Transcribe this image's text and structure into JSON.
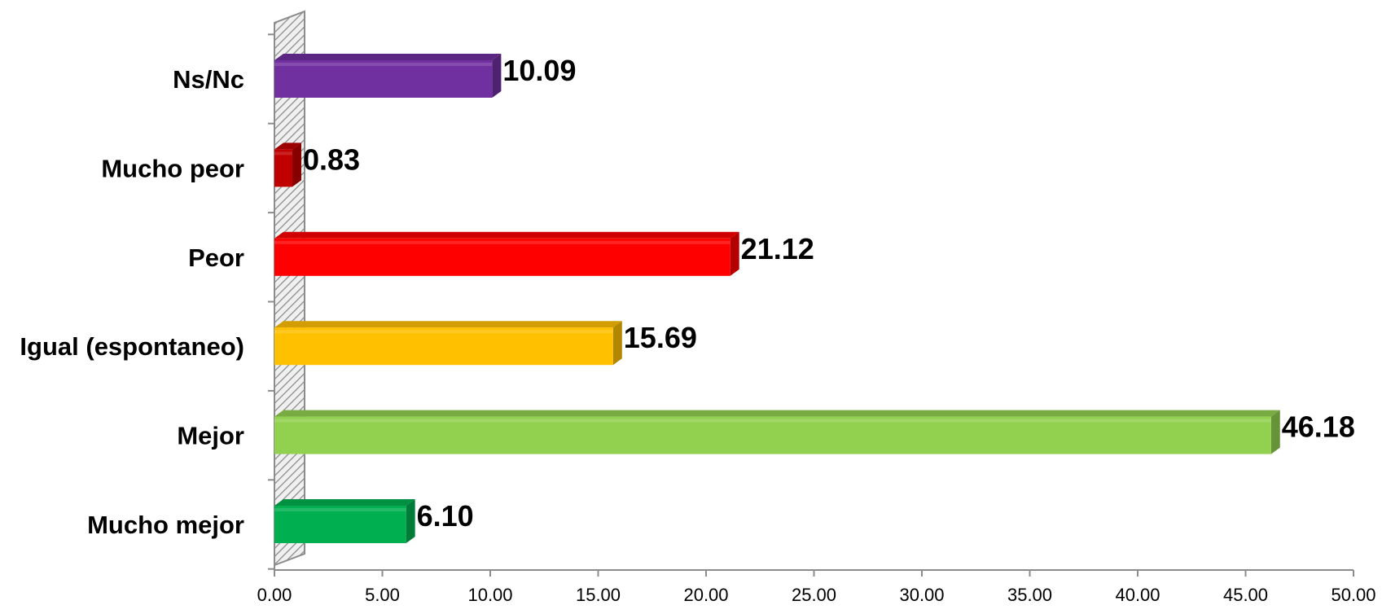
{
  "chart_data": {
    "type": "bar",
    "orientation": "horizontal",
    "style": "3d",
    "categories": [
      "Ns/Nc",
      "Mucho peor",
      "Peor",
      "Igual (espontaneo)",
      "Mejor",
      "Mucho mejor"
    ],
    "values": [
      10.09,
      0.83,
      21.12,
      15.69,
      46.18,
      6.1
    ],
    "value_labels": [
      "10.09",
      "0.83",
      "21.12",
      "15.69",
      "46.18",
      "6.10"
    ],
    "colors": [
      "#7030A0",
      "#C00000",
      "#FF0000",
      "#FFC000",
      "#92D050",
      "#00B050"
    ],
    "xlim": [
      0,
      50
    ],
    "xticks": [
      "0.00",
      "5.00",
      "10.00",
      "15.00",
      "20.00",
      "25.00",
      "30.00",
      "35.00",
      "40.00",
      "45.00",
      "50.00"
    ],
    "title": "",
    "xlabel": "",
    "ylabel": "",
    "grid": false,
    "legend": "none"
  }
}
